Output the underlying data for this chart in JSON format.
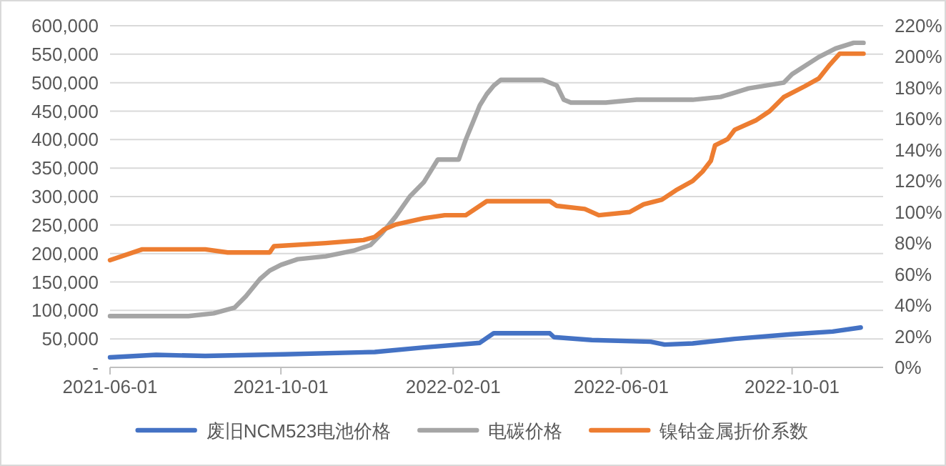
{
  "chart_data": {
    "type": "line",
    "xlim": [
      "2021-06-01",
      "2022-12-05"
    ],
    "xticks": [
      "2021-06-01",
      "2021-10-01",
      "2022-02-01",
      "2022-06-01",
      "2022-10-01"
    ],
    "ylim": [
      0,
      600000
    ],
    "yticks": [
      {
        "value": 0,
        "label": "-"
      },
      {
        "value": 50000,
        "label": "50,000"
      },
      {
        "value": 100000,
        "label": "100,000"
      },
      {
        "value": 150000,
        "label": "150,000"
      },
      {
        "value": 200000,
        "label": "200,000"
      },
      {
        "value": 250000,
        "label": "250,000"
      },
      {
        "value": 300000,
        "label": "300,000"
      },
      {
        "value": 350000,
        "label": "350,000"
      },
      {
        "value": 400000,
        "label": "400,000"
      },
      {
        "value": 450000,
        "label": "450,000"
      },
      {
        "value": 500000,
        "label": "500,000"
      },
      {
        "value": 550000,
        "label": "550,000"
      },
      {
        "value": 600000,
        "label": "600,000"
      }
    ],
    "y2lim": [
      0,
      220
    ],
    "y2ticks": [
      {
        "value": 0,
        "label": "0%"
      },
      {
        "value": 20,
        "label": "20%"
      },
      {
        "value": 40,
        "label": "40%"
      },
      {
        "value": 60,
        "label": "60%"
      },
      {
        "value": 80,
        "label": "80%"
      },
      {
        "value": 100,
        "label": "100%"
      },
      {
        "value": 120,
        "label": "120%"
      },
      {
        "value": 140,
        "label": "140%"
      },
      {
        "value": 160,
        "label": "160%"
      },
      {
        "value": 180,
        "label": "180%"
      },
      {
        "value": 200,
        "label": "200%"
      },
      {
        "value": 220,
        "label": "220%"
      }
    ],
    "grid": "y",
    "legend": "bottom",
    "marker": "none",
    "line_style": "solid",
    "series": [
      {
        "name": "废旧NCM523电池价格",
        "color": "#4472c4",
        "x": [
          "2021-06-01",
          "2021-07-04",
          "2021-08-08",
          "2021-10-03",
          "2021-12-07",
          "2022-01-11",
          "2022-02-20",
          "2022-03-02",
          "2022-04-11",
          "2022-04-14",
          "2022-05-11",
          "2022-06-22",
          "2022-07-02",
          "2022-07-22",
          "2022-08-21",
          "2022-09-30",
          "2022-10-30",
          "2022-11-19"
        ],
        "values": [
          17500,
          22000,
          20000,
          23000,
          27000,
          35000,
          43000,
          60000,
          60000,
          53000,
          48000,
          45000,
          40000,
          42000,
          50000,
          58000,
          63000,
          70000
        ]
      },
      {
        "name": "电碳价格",
        "color": "#a5a5a5",
        "x": [
          "2021-06-01",
          "2021-07-27",
          "2021-08-14",
          "2021-08-29",
          "2021-09-06",
          "2021-09-16",
          "2021-09-23",
          "2021-10-01",
          "2021-10-13",
          "2021-11-02",
          "2021-11-22",
          "2021-12-04",
          "2021-12-12",
          "2021-12-22",
          "2022-01-01",
          "2022-01-11",
          "2022-01-21",
          "2022-02-05",
          "2022-02-10",
          "2022-02-15",
          "2022-02-20",
          "2022-02-25",
          "2022-03-02",
          "2022-03-07",
          "2022-04-06",
          "2022-04-16",
          "2022-04-21",
          "2022-04-26",
          "2022-05-21",
          "2022-06-12",
          "2022-07-22",
          "2022-08-11",
          "2022-08-31",
          "2022-09-25",
          "2022-10-01",
          "2022-10-20",
          "2022-11-01",
          "2022-11-14",
          "2022-11-21"
        ],
        "values": [
          90000,
          90000,
          95000,
          105000,
          125000,
          155000,
          170000,
          180000,
          190000,
          195000,
          205000,
          215000,
          235000,
          265000,
          300000,
          325000,
          365000,
          365000,
          400000,
          430000,
          460000,
          480000,
          495000,
          505000,
          505000,
          495000,
          470000,
          465000,
          465000,
          470000,
          470000,
          475000,
          490000,
          500000,
          515000,
          545000,
          560000,
          570000,
          570000
        ]
      },
      {
        "name": "镍钴金属折价系数",
        "color": "#ed7d31",
        "axis": "y2",
        "x": [
          "2021-06-01",
          "2021-06-24",
          "2021-08-08",
          "2021-08-24",
          "2021-09-23",
          "2021-09-26",
          "2021-11-02",
          "2021-11-29",
          "2021-12-07",
          "2021-12-14",
          "2021-12-22",
          "2022-01-11",
          "2022-01-26",
          "2022-02-10",
          "2022-02-25",
          "2022-04-11",
          "2022-04-16",
          "2022-05-06",
          "2022-05-16",
          "2022-06-07",
          "2022-06-17",
          "2022-06-30",
          "2022-07-10",
          "2022-07-22",
          "2022-07-29",
          "2022-08-04",
          "2022-08-07",
          "2022-08-16",
          "2022-08-21",
          "2022-09-05",
          "2022-09-15",
          "2022-09-25",
          "2022-10-10",
          "2022-10-20",
          "2022-10-28",
          "2022-11-04",
          "2022-11-21"
        ],
        "values": [
          69,
          76,
          76,
          74,
          74,
          78,
          80,
          82,
          84,
          89,
          92,
          96,
          98,
          98,
          107,
          107,
          104,
          102,
          98,
          100,
          105,
          108,
          114,
          120,
          126,
          133,
          143,
          147,
          153,
          159,
          165,
          174,
          181,
          186,
          195,
          202,
          202
        ]
      }
    ]
  }
}
